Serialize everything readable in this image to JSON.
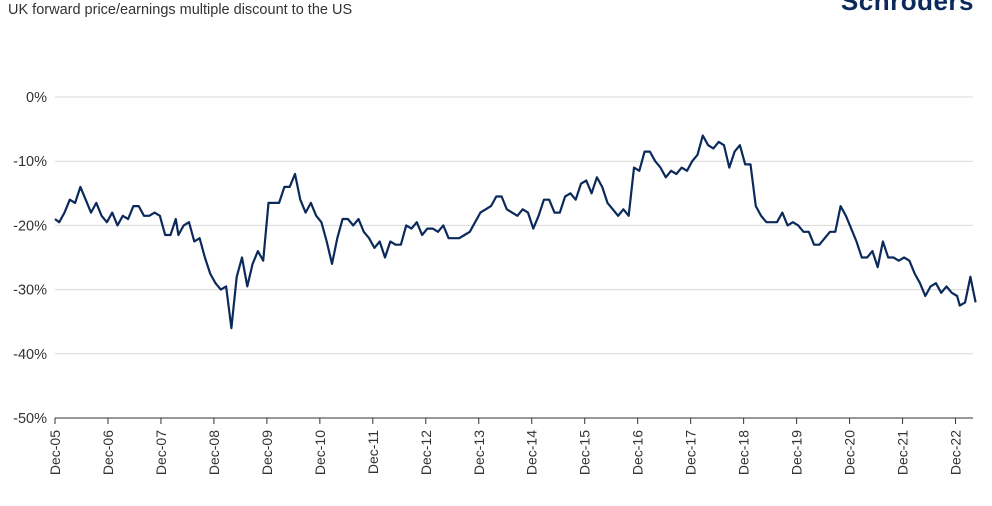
{
  "brand": {
    "logo_text": "Schroders",
    "color": "#0b2a5b"
  },
  "chart_data": {
    "type": "line",
    "title": "UK forward price/earnings multiple discount to the US",
    "xlabel": "",
    "ylabel": "",
    "ylim": [
      -50,
      0
    ],
    "y_ticks": [
      0,
      -10,
      -20,
      -30,
      -40,
      -50
    ],
    "y_tick_labels": [
      "0%",
      "-10%",
      "-20%",
      "-30%",
      "-40%",
      "-50%"
    ],
    "x_tick_labels": [
      "Dec-05",
      "Dec-06",
      "Dec-07",
      "Dec-08",
      "Dec-09",
      "Dec-10",
      "Dec-11",
      "Dec-12",
      "Dec-13",
      "Dec-14",
      "Dec-15",
      "Dec-16",
      "Dec-17",
      "Dec-18",
      "Dec-19",
      "Dec-20",
      "Dec-21",
      "Dec-22"
    ],
    "x_tick_years": [
      2005.92,
      2006.92,
      2007.92,
      2008.92,
      2009.92,
      2010.92,
      2011.92,
      2012.92,
      2013.92,
      2014.92,
      2015.92,
      2016.92,
      2017.92,
      2018.92,
      2019.92,
      2020.92,
      2021.92,
      2022.92
    ],
    "xlim": [
      2005.92,
      2023.25
    ],
    "grid": true,
    "line_color": "#0b2a5b",
    "series": [
      {
        "values": [
          [
            2005.92,
            -19
          ],
          [
            2006.0,
            -19.5
          ],
          [
            2006.1,
            -18
          ],
          [
            2006.2,
            -16
          ],
          [
            2006.3,
            -16.5
          ],
          [
            2006.4,
            -14
          ],
          [
            2006.5,
            -16
          ],
          [
            2006.6,
            -18
          ],
          [
            2006.7,
            -16.5
          ],
          [
            2006.8,
            -18.5
          ],
          [
            2006.9,
            -19.5
          ],
          [
            2007.0,
            -18
          ],
          [
            2007.1,
            -20
          ],
          [
            2007.2,
            -18.5
          ],
          [
            2007.3,
            -19
          ],
          [
            2007.4,
            -17
          ],
          [
            2007.5,
            -17
          ],
          [
            2007.6,
            -18.5
          ],
          [
            2007.7,
            -18.5
          ],
          [
            2007.8,
            -18
          ],
          [
            2007.9,
            -18.5
          ],
          [
            2007.95,
            -20
          ],
          [
            2008.0,
            -21.5
          ],
          [
            2008.1,
            -21.5
          ],
          [
            2008.2,
            -19
          ],
          [
            2008.25,
            -21.5
          ],
          [
            2008.35,
            -20
          ],
          [
            2008.45,
            -19.5
          ],
          [
            2008.55,
            -22.5
          ],
          [
            2008.65,
            -22
          ],
          [
            2008.75,
            -25
          ],
          [
            2008.85,
            -27.5
          ],
          [
            2008.95,
            -29
          ],
          [
            2009.05,
            -30
          ],
          [
            2009.15,
            -29.5
          ],
          [
            2009.25,
            -36
          ],
          [
            2009.35,
            -28
          ],
          [
            2009.45,
            -25
          ],
          [
            2009.55,
            -29.5
          ],
          [
            2009.65,
            -26
          ],
          [
            2009.75,
            -24
          ],
          [
            2009.85,
            -25.5
          ],
          [
            2009.95,
            -16.5
          ],
          [
            2010.05,
            -16.5
          ],
          [
            2010.15,
            -16.5
          ],
          [
            2010.25,
            -14
          ],
          [
            2010.35,
            -14
          ],
          [
            2010.45,
            -12
          ],
          [
            2010.55,
            -16
          ],
          [
            2010.65,
            -18
          ],
          [
            2010.75,
            -16.5
          ],
          [
            2010.85,
            -18.5
          ],
          [
            2010.95,
            -19.5
          ],
          [
            2011.05,
            -22.5
          ],
          [
            2011.15,
            -26
          ],
          [
            2011.25,
            -22
          ],
          [
            2011.35,
            -19
          ],
          [
            2011.45,
            -19
          ],
          [
            2011.55,
            -20
          ],
          [
            2011.65,
            -19
          ],
          [
            2011.75,
            -21
          ],
          [
            2011.85,
            -22
          ],
          [
            2011.95,
            -23.5
          ],
          [
            2012.05,
            -22.5
          ],
          [
            2012.15,
            -25
          ],
          [
            2012.25,
            -22.5
          ],
          [
            2012.35,
            -23
          ],
          [
            2012.45,
            -23
          ],
          [
            2012.55,
            -20
          ],
          [
            2012.65,
            -20.5
          ],
          [
            2012.75,
            -19.5
          ],
          [
            2012.85,
            -21.5
          ],
          [
            2012.95,
            -20.5
          ],
          [
            2013.05,
            -20.5
          ],
          [
            2013.15,
            -21
          ],
          [
            2013.25,
            -20
          ],
          [
            2013.35,
            -22
          ],
          [
            2013.45,
            -22
          ],
          [
            2013.55,
            -22
          ],
          [
            2013.65,
            -21.5
          ],
          [
            2013.75,
            -21
          ],
          [
            2013.85,
            -19.5
          ],
          [
            2013.95,
            -18
          ],
          [
            2014.05,
            -17.5
          ],
          [
            2014.15,
            -17
          ],
          [
            2014.25,
            -15.5
          ],
          [
            2014.35,
            -15.5
          ],
          [
            2014.45,
            -17.5
          ],
          [
            2014.55,
            -18
          ],
          [
            2014.65,
            -18.5
          ],
          [
            2014.75,
            -17.5
          ],
          [
            2014.85,
            -18
          ],
          [
            2014.95,
            -20.5
          ],
          [
            2015.05,
            -18.5
          ],
          [
            2015.15,
            -16
          ],
          [
            2015.25,
            -16
          ],
          [
            2015.35,
            -18
          ],
          [
            2015.45,
            -18
          ],
          [
            2015.55,
            -15.5
          ],
          [
            2015.65,
            -15
          ],
          [
            2015.75,
            -16
          ],
          [
            2015.85,
            -13.5
          ],
          [
            2015.95,
            -13
          ],
          [
            2016.05,
            -15
          ],
          [
            2016.15,
            -12.5
          ],
          [
            2016.25,
            -14
          ],
          [
            2016.35,
            -16.5
          ],
          [
            2016.45,
            -17.5
          ],
          [
            2016.55,
            -18.5
          ],
          [
            2016.65,
            -17.5
          ],
          [
            2016.75,
            -18.5
          ],
          [
            2016.85,
            -11
          ],
          [
            2016.95,
            -11.5
          ],
          [
            2017.05,
            -8.5
          ],
          [
            2017.15,
            -8.5
          ],
          [
            2017.25,
            -10
          ],
          [
            2017.35,
            -11
          ],
          [
            2017.45,
            -12.5
          ],
          [
            2017.55,
            -11.5
          ],
          [
            2017.65,
            -12
          ],
          [
            2017.75,
            -11
          ],
          [
            2017.85,
            -11.5
          ],
          [
            2017.95,
            -10
          ],
          [
            2018.05,
            -9
          ],
          [
            2018.15,
            -6
          ],
          [
            2018.25,
            -7.5
          ],
          [
            2018.35,
            -8
          ],
          [
            2018.45,
            -7
          ],
          [
            2018.55,
            -7.5
          ],
          [
            2018.65,
            -11
          ],
          [
            2018.75,
            -8.5
          ],
          [
            2018.85,
            -7.5
          ],
          [
            2018.95,
            -10.5
          ],
          [
            2019.05,
            -10.5
          ],
          [
            2019.15,
            -17
          ],
          [
            2019.25,
            -18.5
          ],
          [
            2019.35,
            -19.5
          ],
          [
            2019.45,
            -19.5
          ],
          [
            2019.55,
            -19.5
          ],
          [
            2019.65,
            -18
          ],
          [
            2019.75,
            -20
          ],
          [
            2019.85,
            -19.5
          ],
          [
            2019.95,
            -20
          ],
          [
            2020.05,
            -21
          ],
          [
            2020.15,
            -21
          ],
          [
            2020.25,
            -23
          ],
          [
            2020.35,
            -23
          ],
          [
            2020.45,
            -22
          ],
          [
            2020.55,
            -21
          ],
          [
            2020.65,
            -21
          ],
          [
            2020.75,
            -17
          ],
          [
            2020.85,
            -18.5
          ],
          [
            2020.95,
            -20.5
          ],
          [
            2021.05,
            -22.5
          ],
          [
            2021.15,
            -25
          ],
          [
            2021.25,
            -25
          ],
          [
            2021.35,
            -24
          ],
          [
            2021.45,
            -26.5
          ],
          [
            2021.55,
            -22.5
          ],
          [
            2021.65,
            -25
          ],
          [
            2021.75,
            -25
          ],
          [
            2021.85,
            -25.5
          ],
          [
            2021.95,
            -25
          ],
          [
            2022.05,
            -25.5
          ],
          [
            2022.15,
            -27.5
          ],
          [
            2022.25,
            -29
          ],
          [
            2022.35,
            -31
          ],
          [
            2022.45,
            -29.5
          ],
          [
            2022.55,
            -29
          ],
          [
            2022.65,
            -30.5
          ],
          [
            2022.75,
            -29.5
          ],
          [
            2022.85,
            -30.5
          ],
          [
            2022.95,
            -31
          ],
          [
            2023.0,
            -32.5
          ],
          [
            2023.1,
            -32
          ],
          [
            2023.2,
            -28
          ],
          [
            2023.3,
            -32
          ]
        ]
      }
    ]
  }
}
